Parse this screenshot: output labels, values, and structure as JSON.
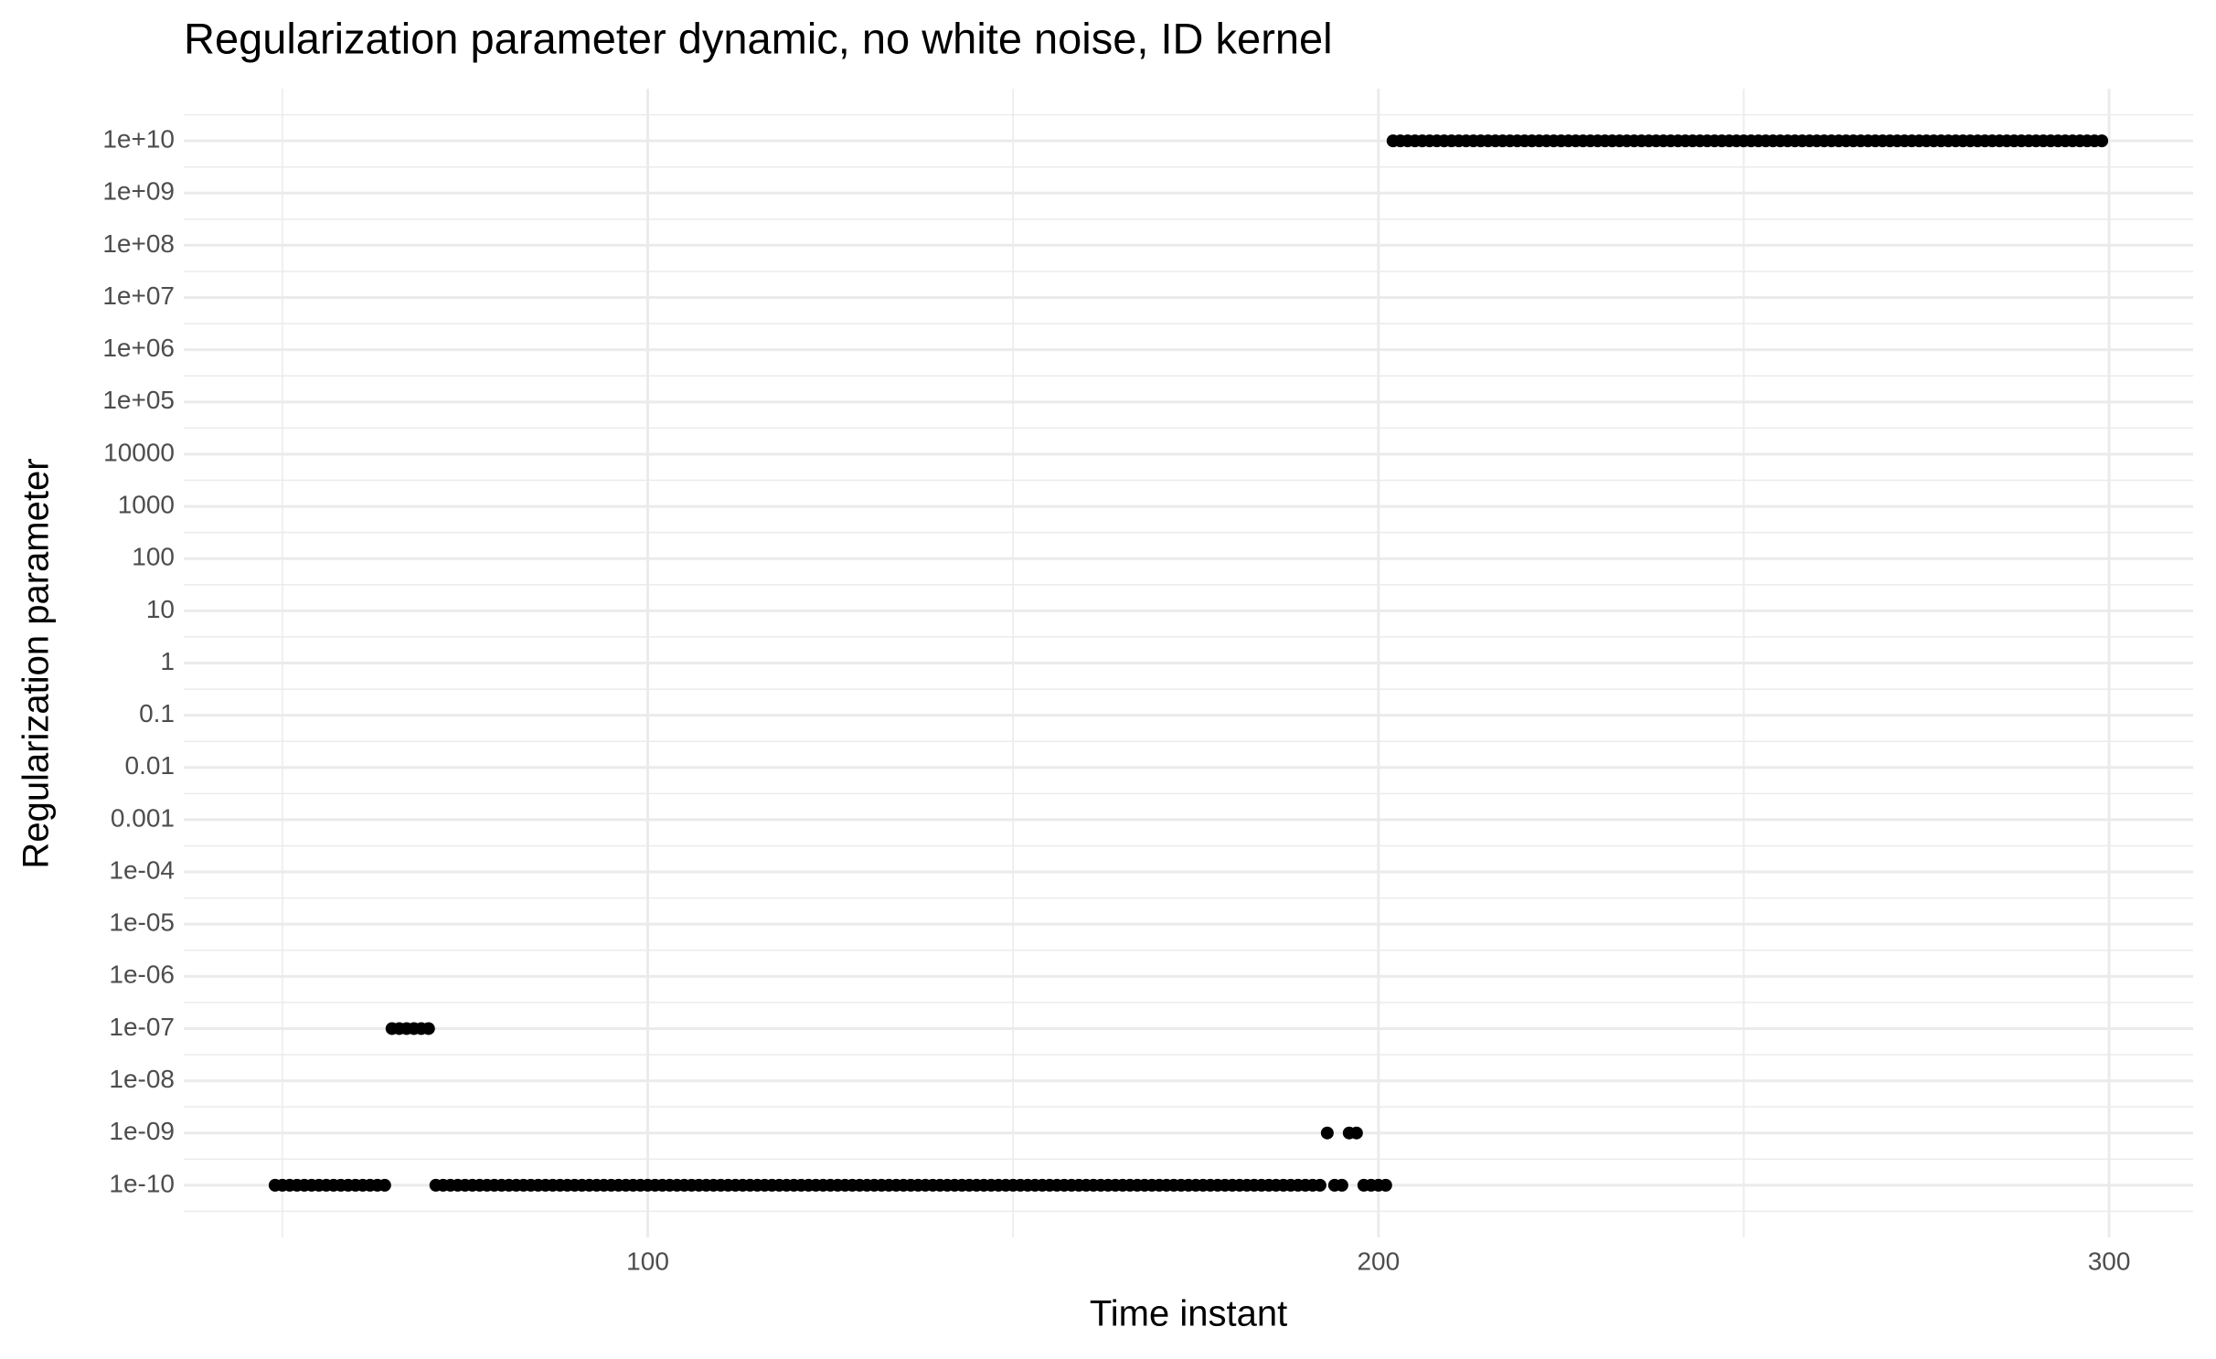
{
  "chart_data": {
    "type": "scatter",
    "title": "Regularization parameter dynamic, no white noise, ID kernel",
    "x_label": "Time instant",
    "y_label": "Regularization parameter",
    "color": "#000000",
    "grid": true,
    "y_scale": "log",
    "xlim": [
      36.5,
      311.5
    ],
    "ylim": [
      1e-11,
      100000000000.0
    ],
    "xticks": [
      100,
      200,
      300
    ],
    "yticks": [
      {
        "value": 1e-10,
        "label": "1e-10"
      },
      {
        "value": 1e-09,
        "label": "1e-09"
      },
      {
        "value": 1e-08,
        "label": "1e-08"
      },
      {
        "value": 1e-07,
        "label": "1e-07"
      },
      {
        "value": 1e-06,
        "label": "1e-06"
      },
      {
        "value": 1e-05,
        "label": "1e-05"
      },
      {
        "value": 0.0001,
        "label": "1e-04"
      },
      0.001,
      0.01,
      0.1,
      1,
      10,
      100,
      1000,
      10000,
      {
        "value": 100000.0,
        "label": "1e+05"
      },
      {
        "value": 1000000.0,
        "label": "1e+06"
      },
      {
        "value": 10000000.0,
        "label": "1e+07"
      },
      {
        "value": 100000000.0,
        "label": "1e+08"
      },
      {
        "value": 1000000000.0,
        "label": "1e+09"
      },
      {
        "value": 10000000000.0,
        "label": "1e+10"
      }
    ],
    "x": [
      49,
      50,
      51,
      52,
      53,
      54,
      55,
      56,
      57,
      58,
      59,
      60,
      61,
      62,
      63,
      64,
      65,
      66,
      67,
      68,
      69,
      70,
      71,
      72,
      73,
      74,
      75,
      76,
      77,
      78,
      79,
      80,
      81,
      82,
      83,
      84,
      85,
      86,
      87,
      88,
      89,
      90,
      91,
      92,
      93,
      94,
      95,
      96,
      97,
      98,
      99,
      100,
      101,
      102,
      103,
      104,
      105,
      106,
      107,
      108,
      109,
      110,
      111,
      112,
      113,
      114,
      115,
      116,
      117,
      118,
      119,
      120,
      121,
      122,
      123,
      124,
      125,
      126,
      127,
      128,
      129,
      130,
      131,
      132,
      133,
      134,
      135,
      136,
      137,
      138,
      139,
      140,
      141,
      142,
      143,
      144,
      145,
      146,
      147,
      148,
      149,
      150,
      151,
      152,
      153,
      154,
      155,
      156,
      157,
      158,
      159,
      160,
      161,
      162,
      163,
      164,
      165,
      166,
      167,
      168,
      169,
      170,
      171,
      172,
      173,
      174,
      175,
      176,
      177,
      178,
      179,
      180,
      181,
      182,
      183,
      184,
      185,
      186,
      187,
      188,
      189,
      190,
      191,
      192,
      193,
      194,
      195,
      196,
      197,
      198,
      199,
      200,
      201,
      202,
      203,
      204,
      205,
      206,
      207,
      208,
      209,
      210,
      211,
      212,
      213,
      214,
      215,
      216,
      217,
      218,
      219,
      220,
      221,
      222,
      223,
      224,
      225,
      226,
      227,
      228,
      229,
      230,
      231,
      232,
      233,
      234,
      235,
      236,
      237,
      238,
      239,
      240,
      241,
      242,
      243,
      244,
      245,
      246,
      247,
      248,
      249,
      250,
      251,
      252,
      253,
      254,
      255,
      256,
      257,
      258,
      259,
      260,
      261,
      262,
      263,
      264,
      265,
      266,
      267,
      268,
      269,
      270,
      271,
      272,
      273,
      274,
      275,
      276,
      277,
      278,
      279,
      280,
      281,
      282,
      283,
      284,
      285,
      286,
      287,
      288,
      289,
      290,
      291,
      292,
      293,
      294,
      295,
      296,
      297,
      298,
      299
    ],
    "values": [
      1e-10,
      1e-10,
      1e-10,
      1e-10,
      1e-10,
      1e-10,
      1e-10,
      1e-10,
      1e-10,
      1e-10,
      1e-10,
      1e-10,
      1e-10,
      1e-10,
      1e-10,
      1e-10,
      1e-07,
      1e-07,
      1e-07,
      1e-07,
      1e-07,
      1e-07,
      1e-10,
      1e-10,
      1e-10,
      1e-10,
      1e-10,
      1e-10,
      1e-10,
      1e-10,
      1e-10,
      1e-10,
      1e-10,
      1e-10,
      1e-10,
      1e-10,
      1e-10,
      1e-10,
      1e-10,
      1e-10,
      1e-10,
      1e-10,
      1e-10,
      1e-10,
      1e-10,
      1e-10,
      1e-10,
      1e-10,
      1e-10,
      1e-10,
      1e-10,
      1e-10,
      1e-10,
      1e-10,
      1e-10,
      1e-10,
      1e-10,
      1e-10,
      1e-10,
      1e-10,
      1e-10,
      1e-10,
      1e-10,
      1e-10,
      1e-10,
      1e-10,
      1e-10,
      1e-10,
      1e-10,
      1e-10,
      1e-10,
      1e-10,
      1e-10,
      1e-10,
      1e-10,
      1e-10,
      1e-10,
      1e-10,
      1e-10,
      1e-10,
      1e-10,
      1e-10,
      1e-10,
      1e-10,
      1e-10,
      1e-10,
      1e-10,
      1e-10,
      1e-10,
      1e-10,
      1e-10,
      1e-10,
      1e-10,
      1e-10,
      1e-10,
      1e-10,
      1e-10,
      1e-10,
      1e-10,
      1e-10,
      1e-10,
      1e-10,
      1e-10,
      1e-10,
      1e-10,
      1e-10,
      1e-10,
      1e-10,
      1e-10,
      1e-10,
      1e-10,
      1e-10,
      1e-10,
      1e-10,
      1e-10,
      1e-10,
      1e-10,
      1e-10,
      1e-10,
      1e-10,
      1e-10,
      1e-10,
      1e-10,
      1e-10,
      1e-10,
      1e-10,
      1e-10,
      1e-10,
      1e-10,
      1e-10,
      1e-10,
      1e-10,
      1e-10,
      1e-10,
      1e-10,
      1e-10,
      1e-10,
      1e-10,
      1e-10,
      1e-10,
      1e-10,
      1e-10,
      1e-10,
      1e-10,
      1e-09,
      1e-10,
      1e-10,
      1e-09,
      1e-09,
      1e-10,
      1e-10,
      1e-10,
      1e-10,
      10000000000.0,
      10000000000.0,
      10000000000.0,
      10000000000.0,
      10000000000.0,
      10000000000.0,
      10000000000.0,
      10000000000.0,
      10000000000.0,
      10000000000.0,
      10000000000.0,
      10000000000.0,
      10000000000.0,
      10000000000.0,
      10000000000.0,
      10000000000.0,
      10000000000.0,
      10000000000.0,
      10000000000.0,
      10000000000.0,
      10000000000.0,
      10000000000.0,
      10000000000.0,
      10000000000.0,
      10000000000.0,
      10000000000.0,
      10000000000.0,
      10000000000.0,
      10000000000.0,
      10000000000.0,
      10000000000.0,
      10000000000.0,
      10000000000.0,
      10000000000.0,
      10000000000.0,
      10000000000.0,
      10000000000.0,
      10000000000.0,
      10000000000.0,
      10000000000.0,
      10000000000.0,
      10000000000.0,
      10000000000.0,
      10000000000.0,
      10000000000.0,
      10000000000.0,
      10000000000.0,
      10000000000.0,
      10000000000.0,
      10000000000.0,
      10000000000.0,
      10000000000.0,
      10000000000.0,
      10000000000.0,
      10000000000.0,
      10000000000.0,
      10000000000.0,
      10000000000.0,
      10000000000.0,
      10000000000.0,
      10000000000.0,
      10000000000.0,
      10000000000.0,
      10000000000.0,
      10000000000.0,
      10000000000.0,
      10000000000.0,
      10000000000.0,
      10000000000.0,
      10000000000.0,
      10000000000.0,
      10000000000.0,
      10000000000.0,
      10000000000.0,
      10000000000.0,
      10000000000.0,
      10000000000.0,
      10000000000.0,
      10000000000.0,
      10000000000.0,
      10000000000.0,
      10000000000.0,
      10000000000.0,
      10000000000.0,
      10000000000.0,
      10000000000.0,
      10000000000.0,
      10000000000.0,
      10000000000.0,
      10000000000.0,
      10000000000.0,
      10000000000.0,
      10000000000.0,
      10000000000.0,
      10000000000.0,
      10000000000.0,
      10000000000.0,
      10000000000.0
    ]
  }
}
